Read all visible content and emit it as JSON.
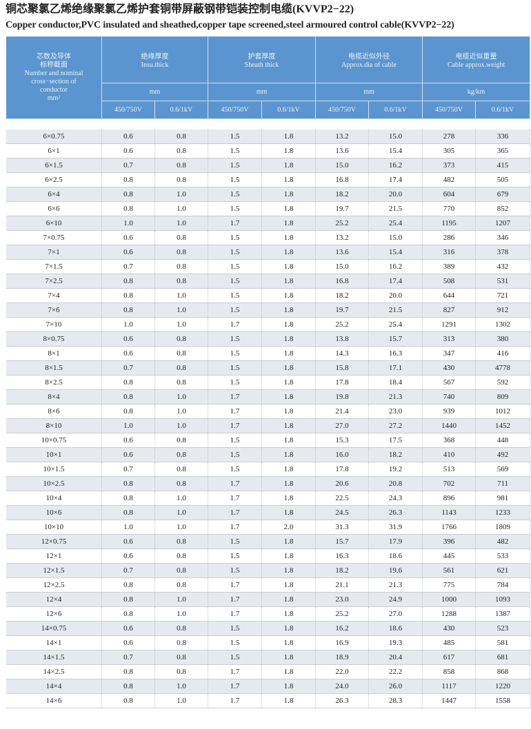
{
  "title_cn": "铜芯聚氯乙烯绝缘聚氯乙烯护套铜带屏蔽钢带铠装控制电缆(KVVP2−22)",
  "title_en": "Copper conductor,PVC insulated and sheathed,copper tape screened,steel armoured control cable(KVVP2−22)",
  "header": {
    "first_col": {
      "cn1": "芯数及导体",
      "cn2": "标称截面",
      "en1": "Number and nominal",
      "en2": "cross−section of",
      "en3": "conductor",
      "unit": "mm²"
    },
    "groups": [
      {
        "cn": "绝缘厚度",
        "en": "Insu.thick",
        "unit": "mm"
      },
      {
        "cn": "护套厚度",
        "en": "Sheath thick",
        "unit": "mm"
      },
      {
        "cn": "电缆近似外径",
        "en": "Approx.dia of cable",
        "unit": "mm"
      },
      {
        "cn": "电缆近似重量",
        "en": "Cable approx.weight",
        "unit": "kg/km"
      }
    ],
    "voltages": [
      "450/750V",
      "0.6/1kV"
    ]
  },
  "colors": {
    "header_bg": "#5b95cf",
    "row_alt": "#e6eaee"
  },
  "rows": [
    [
      "6×0.75",
      "0.6",
      "0.8",
      "1.5",
      "1.8",
      "13.2",
      "15.0",
      "278",
      "336"
    ],
    [
      "6×1",
      "0.6",
      "0.8",
      "1.5",
      "1.8",
      "13.6",
      "15.4",
      "305",
      "365"
    ],
    [
      "6×1.5",
      "0.7",
      "0.8",
      "1.5",
      "1.8",
      "15.0",
      "16.2",
      "373",
      "415"
    ],
    [
      "6×2.5",
      "0.8",
      "0.8",
      "1.5",
      "1.8",
      "16.8",
      "17.4",
      "482",
      "505"
    ],
    [
      "6×4",
      "0.8",
      "1.0",
      "1.5",
      "1.8",
      "18.2",
      "20.0",
      "604",
      "679"
    ],
    [
      "6×6",
      "0.8",
      "1.0",
      "1.5",
      "1.8",
      "19.7",
      "21.5",
      "770",
      "852"
    ],
    [
      "6×10",
      "1.0",
      "1.0",
      "1.7",
      "1.8",
      "25.2",
      "25.4",
      "1195",
      "1207"
    ],
    [
      "7×0.75",
      "0.6",
      "0.8",
      "1.5",
      "1.8",
      "13.2",
      "15.0",
      "286",
      "346"
    ],
    [
      "7×1",
      "0.6",
      "0.8",
      "1.5",
      "1.8",
      "13.6",
      "15.4",
      "316",
      "378"
    ],
    [
      "7×1.5",
      "0.7",
      "0.8",
      "1.5",
      "1.8",
      "15.0",
      "16.2",
      "389",
      "432"
    ],
    [
      "7×2.5",
      "0.8",
      "0.8",
      "1.5",
      "1.8",
      "16.8",
      "17.4",
      "508",
      "531"
    ],
    [
      "7×4",
      "0.8",
      "1.0",
      "1.5",
      "1.8",
      "18.2",
      "20.0",
      "644",
      "721"
    ],
    [
      "7×6",
      "0.8",
      "1.0",
      "1.5",
      "1.8",
      "19.7",
      "21.5",
      "827",
      "912"
    ],
    [
      "7×10",
      "1.0",
      "1.0",
      "1.7",
      "1.8",
      "25.2",
      "25.4",
      "1291",
      "1302"
    ],
    [
      "8×0.75",
      "0.6",
      "0.8",
      "1.5",
      "1.8",
      "13.8",
      "15.7",
      "313",
      "380"
    ],
    [
      "8×1",
      "0.6",
      "0.8",
      "1.5",
      "1.8",
      "14.3",
      "16.3",
      "347",
      "416"
    ],
    [
      "8×1.5",
      "0.7",
      "0.8",
      "1.5",
      "1.8",
      "15.8",
      "17.1",
      "430",
      "4778"
    ],
    [
      "8×2.5",
      "0.8",
      "0.8",
      "1.5",
      "1.8",
      "17.8",
      "18.4",
      "567",
      "592"
    ],
    [
      "8×4",
      "0.8",
      "1.0",
      "1.7",
      "1.8",
      "19.8",
      "21.3",
      "740",
      "809"
    ],
    [
      "8×6",
      "0.8",
      "1.0",
      "1.7",
      "1.8",
      "21.4",
      "23.0",
      "939",
      "1012"
    ],
    [
      "8×10",
      "1.0",
      "1.0",
      "1.7",
      "1.8",
      "27.0",
      "27.2",
      "1440",
      "1452"
    ],
    [
      "10×0.75",
      "0.6",
      "0.8",
      "1.5",
      "1.8",
      "15.3",
      "17.5",
      "368",
      "448"
    ],
    [
      "10×1",
      "0.6",
      "0.8",
      "1.5",
      "1.8",
      "16.0",
      "18.2",
      "410",
      "492"
    ],
    [
      "10×1.5",
      "0.7",
      "0.8",
      "1.5",
      "1.8",
      "17.8",
      "19.2",
      "513",
      "569"
    ],
    [
      "10×2.5",
      "0.8",
      "0.8",
      "1.7",
      "1.8",
      "20.6",
      "20.8",
      "702",
      "711"
    ],
    [
      "10×4",
      "0.8",
      "1.0",
      "1.7",
      "1.8",
      "22.5",
      "24.3",
      "896",
      "981"
    ],
    [
      "10×6",
      "0.8",
      "1.0",
      "1.7",
      "1.8",
      "24.5",
      "26.3",
      "1143",
      "1233"
    ],
    [
      "10×10",
      "1.0",
      "1.0",
      "1.7",
      "2.0",
      "31.3",
      "31.9",
      "1766",
      "1809"
    ],
    [
      "12×0.75",
      "0.6",
      "0.8",
      "1.5",
      "1.8",
      "15.7",
      "17.9",
      "396",
      "482"
    ],
    [
      "12×1",
      "0.6",
      "0.8",
      "1.5",
      "1.8",
      "16.3",
      "18.6",
      "445",
      "533"
    ],
    [
      "12×1.5",
      "0.7",
      "0.8",
      "1.5",
      "1.8",
      "18.2",
      "19.6",
      "561",
      "621"
    ],
    [
      "12×2.5",
      "0.8",
      "0.8",
      "1.7",
      "1.8",
      "21.1",
      "21.3",
      "775",
      "784"
    ],
    [
      "12×4",
      "0.8",
      "1.0",
      "1.7",
      "1.8",
      "23.0",
      "24.9",
      "1000",
      "1093"
    ],
    [
      "12×6",
      "0.8",
      "1.0",
      "1.7",
      "1.8",
      "25.2",
      "27.0",
      "1288",
      "1387"
    ],
    [
      "14×0.75",
      "0.6",
      "0.8",
      "1.5",
      "1.8",
      "16.2",
      "18.6",
      "430",
      "523"
    ],
    [
      "14×1",
      "0.6",
      "0.8",
      "1.5",
      "1.8",
      "16.9",
      "19.3",
      "485",
      "581"
    ],
    [
      "14×1.5",
      "0.7",
      "0.8",
      "1.5",
      "1.8",
      "18.9",
      "20.4",
      "617",
      "681"
    ],
    [
      "14×2.5",
      "0.8",
      "0.8",
      "1.7",
      "1.8",
      "22.0",
      "22.2",
      "858",
      "868"
    ],
    [
      "14×4",
      "0.8",
      "1.0",
      "1.7",
      "1.8",
      "24.0",
      "26.0",
      "1117",
      "1220"
    ],
    [
      "14×6",
      "0.8",
      "1.0",
      "1.7",
      "1.8",
      "26.3",
      "28.3",
      "1447",
      "1558"
    ]
  ]
}
